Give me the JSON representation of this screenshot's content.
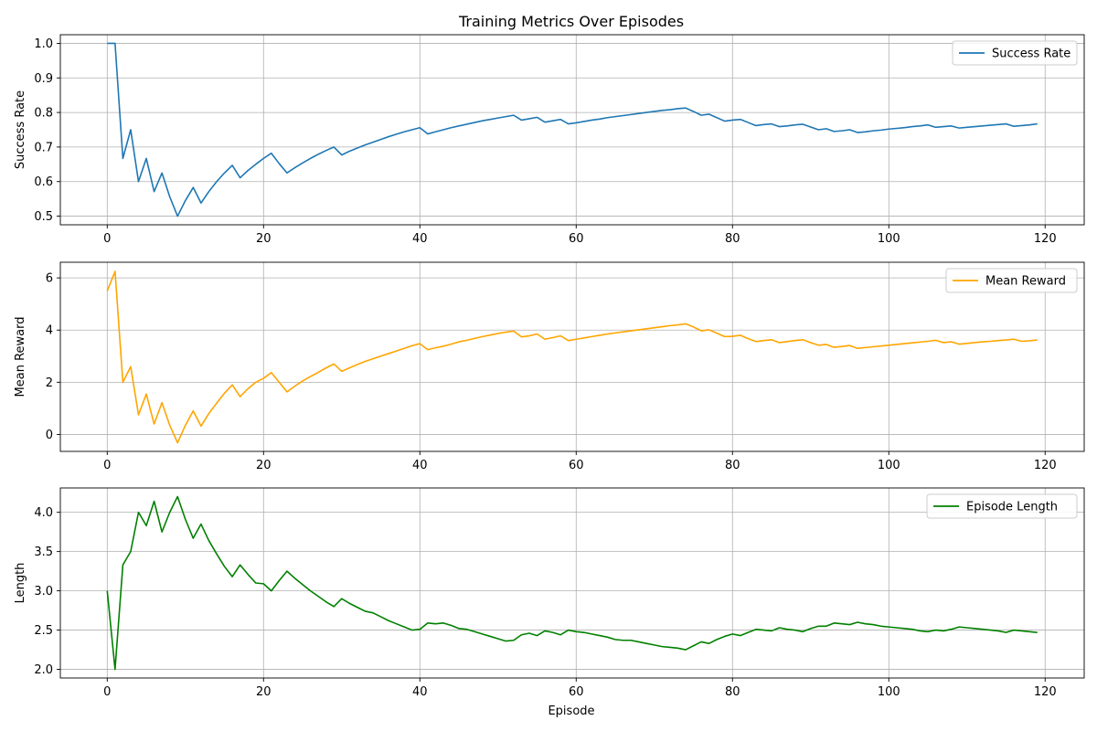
{
  "figure": {
    "title": "Training Metrics Over Episodes",
    "xlabel": "Episode"
  },
  "chart_data": [
    {
      "type": "line",
      "title": "Training Metrics Over Episodes",
      "xlabel": "",
      "ylabel": "Success Rate",
      "xlim": [
        -6,
        125
      ],
      "ylim": [
        0.475,
        1.025
      ],
      "xticks": [
        0,
        20,
        40,
        60,
        80,
        100,
        120
      ],
      "yticks": [
        0.5,
        0.6,
        0.7,
        0.8,
        0.9,
        1.0
      ],
      "ytick_labels": [
        "0.5",
        "0.6",
        "0.7",
        "0.8",
        "0.9",
        "1.0"
      ],
      "grid": true,
      "legend_position": "top-right",
      "series": [
        {
          "name": "Success Rate",
          "color": "#1f77b4",
          "x": [
            0,
            1,
            2,
            3,
            4,
            5,
            6,
            7,
            8,
            9,
            10,
            11,
            12,
            13,
            14,
            15,
            16,
            17,
            18,
            19,
            20,
            21,
            22,
            23,
            24,
            25,
            26,
            27,
            28,
            29,
            30,
            31,
            32,
            33,
            34,
            35,
            36,
            37,
            38,
            39,
            40,
            41,
            42,
            43,
            44,
            45,
            46,
            47,
            48,
            49,
            50,
            51,
            52,
            53,
            54,
            55,
            56,
            57,
            58,
            59,
            60,
            61,
            62,
            63,
            64,
            65,
            66,
            67,
            68,
            69,
            70,
            71,
            72,
            73,
            74,
            75,
            76,
            77,
            78,
            79,
            80,
            81,
            82,
            83,
            84,
            85,
            86,
            87,
            88,
            89,
            90,
            91,
            92,
            93,
            94,
            95,
            96,
            97,
            98,
            99,
            100,
            101,
            102,
            103,
            104,
            105,
            106,
            107,
            108,
            109,
            110,
            111,
            112,
            113,
            114,
            115,
            116,
            117,
            118,
            119
          ],
          "values": [
            1.0,
            1.0,
            0.667,
            0.75,
            0.6,
            0.667,
            0.571,
            0.625,
            0.556,
            0.5,
            0.545,
            0.583,
            0.538,
            0.571,
            0.6,
            0.625,
            0.647,
            0.611,
            0.632,
            0.65,
            0.667,
            0.682,
            0.652,
            0.625,
            0.64,
            0.654,
            0.667,
            0.679,
            0.69,
            0.7,
            0.677,
            0.688,
            0.697,
            0.706,
            0.714,
            0.722,
            0.73,
            0.737,
            0.744,
            0.75,
            0.756,
            0.738,
            0.744,
            0.75,
            0.756,
            0.761,
            0.766,
            0.771,
            0.776,
            0.78,
            0.784,
            0.788,
            0.792,
            0.778,
            0.782,
            0.786,
            0.772,
            0.776,
            0.78,
            0.767,
            0.77,
            0.774,
            0.778,
            0.781,
            0.785,
            0.788,
            0.791,
            0.794,
            0.797,
            0.8,
            0.803,
            0.806,
            0.808,
            0.811,
            0.813,
            0.803,
            0.792,
            0.795,
            0.785,
            0.775,
            0.778,
            0.78,
            0.771,
            0.762,
            0.765,
            0.767,
            0.759,
            0.761,
            0.764,
            0.766,
            0.758,
            0.75,
            0.753,
            0.745,
            0.747,
            0.75,
            0.742,
            0.744,
            0.747,
            0.749,
            0.752,
            0.754,
            0.756,
            0.759,
            0.761,
            0.764,
            0.757,
            0.759,
            0.761,
            0.755,
            0.757,
            0.759,
            0.761,
            0.763,
            0.765,
            0.767,
            0.76,
            0.762,
            0.764,
            0.767
          ]
        }
      ]
    },
    {
      "type": "line",
      "xlabel": "",
      "ylabel": "Mean Reward",
      "xlim": [
        -6,
        125
      ],
      "ylim": [
        -0.65,
        6.6
      ],
      "xticks": [
        0,
        20,
        40,
        60,
        80,
        100,
        120
      ],
      "yticks": [
        0,
        2,
        4,
        6
      ],
      "ytick_labels": [
        "0",
        "2",
        "4",
        "6"
      ],
      "grid": true,
      "legend_position": "top-right",
      "series": [
        {
          "name": "Mean Reward",
          "color": "#ffa500",
          "x": [
            0,
            1,
            2,
            3,
            4,
            5,
            6,
            7,
            8,
            9,
            10,
            11,
            12,
            13,
            14,
            15,
            16,
            17,
            18,
            19,
            20,
            21,
            22,
            23,
            24,
            25,
            26,
            27,
            28,
            29,
            30,
            31,
            32,
            33,
            34,
            35,
            36,
            37,
            38,
            39,
            40,
            41,
            42,
            43,
            44,
            45,
            46,
            47,
            48,
            49,
            50,
            51,
            52,
            53,
            54,
            55,
            56,
            57,
            58,
            59,
            60,
            61,
            62,
            63,
            64,
            65,
            66,
            67,
            68,
            69,
            70,
            71,
            72,
            73,
            74,
            75,
            76,
            77,
            78,
            79,
            80,
            81,
            82,
            83,
            84,
            85,
            86,
            87,
            88,
            89,
            90,
            91,
            92,
            93,
            94,
            95,
            96,
            97,
            98,
            99,
            100,
            101,
            102,
            103,
            104,
            105,
            106,
            107,
            108,
            109,
            110,
            111,
            112,
            113,
            114,
            115,
            116,
            117,
            118,
            119
          ],
          "values": [
            5.5,
            6.25,
            2.0,
            2.6,
            0.75,
            1.55,
            0.4,
            1.22,
            0.35,
            -0.32,
            0.35,
            0.9,
            0.32,
            0.8,
            1.2,
            1.58,
            1.9,
            1.45,
            1.75,
            2.0,
            2.15,
            2.37,
            2.0,
            1.63,
            1.85,
            2.05,
            2.22,
            2.38,
            2.55,
            2.7,
            2.42,
            2.55,
            2.68,
            2.8,
            2.9,
            3.0,
            3.1,
            3.2,
            3.3,
            3.4,
            3.48,
            3.25,
            3.32,
            3.38,
            3.46,
            3.55,
            3.61,
            3.68,
            3.75,
            3.81,
            3.87,
            3.92,
            3.96,
            3.74,
            3.78,
            3.85,
            3.65,
            3.71,
            3.78,
            3.6,
            3.65,
            3.7,
            3.75,
            3.8,
            3.85,
            3.89,
            3.93,
            3.97,
            4.01,
            4.05,
            4.09,
            4.13,
            4.17,
            4.2,
            4.24,
            4.12,
            3.97,
            4.01,
            3.88,
            3.75,
            3.76,
            3.8,
            3.67,
            3.56,
            3.6,
            3.63,
            3.52,
            3.56,
            3.6,
            3.63,
            3.52,
            3.42,
            3.45,
            3.34,
            3.37,
            3.41,
            3.3,
            3.33,
            3.36,
            3.39,
            3.42,
            3.45,
            3.48,
            3.51,
            3.54,
            3.57,
            3.61,
            3.52,
            3.55,
            3.46,
            3.49,
            3.52,
            3.55,
            3.57,
            3.6,
            3.62,
            3.65,
            3.57,
            3.59,
            3.62
          ]
        }
      ]
    },
    {
      "type": "line",
      "xlabel": "Episode",
      "ylabel": "Length",
      "xlim": [
        -6,
        125
      ],
      "ylim": [
        1.89,
        4.31
      ],
      "xticks": [
        0,
        20,
        40,
        60,
        80,
        100,
        120
      ],
      "yticks": [
        2.0,
        2.5,
        3.0,
        3.5,
        4.0
      ],
      "ytick_labels": [
        "2.0",
        "2.5",
        "3.0",
        "3.5",
        "4.0"
      ],
      "grid": true,
      "legend_position": "top-right",
      "series": [
        {
          "name": "Episode Length",
          "color": "#008000",
          "x": [
            0,
            1,
            2,
            3,
            4,
            5,
            6,
            7,
            8,
            9,
            10,
            11,
            12,
            13,
            14,
            15,
            16,
            17,
            18,
            19,
            20,
            21,
            22,
            23,
            24,
            25,
            26,
            27,
            28,
            29,
            30,
            31,
            32,
            33,
            34,
            35,
            36,
            37,
            38,
            39,
            40,
            41,
            42,
            43,
            44,
            45,
            46,
            47,
            48,
            49,
            50,
            51,
            52,
            53,
            54,
            55,
            56,
            57,
            58,
            59,
            60,
            61,
            62,
            63,
            64,
            65,
            66,
            67,
            68,
            69,
            70,
            71,
            72,
            73,
            74,
            75,
            76,
            77,
            78,
            79,
            80,
            81,
            82,
            83,
            84,
            85,
            86,
            87,
            88,
            89,
            90,
            91,
            92,
            93,
            94,
            95,
            96,
            97,
            98,
            99,
            100,
            101,
            102,
            103,
            104,
            105,
            106,
            107,
            108,
            109,
            110,
            111,
            112,
            113,
            114,
            115,
            116,
            117,
            118,
            119
          ],
          "values": [
            3.0,
            2.0,
            3.33,
            3.5,
            4.0,
            3.83,
            4.14,
            3.75,
            4.0,
            4.2,
            3.91,
            3.67,
            3.85,
            3.64,
            3.47,
            3.31,
            3.18,
            3.33,
            3.21,
            3.1,
            3.09,
            3.0,
            3.13,
            3.25,
            3.16,
            3.08,
            3.0,
            2.93,
            2.86,
            2.8,
            2.9,
            2.84,
            2.79,
            2.74,
            2.72,
            2.67,
            2.62,
            2.58,
            2.54,
            2.5,
            2.51,
            2.59,
            2.58,
            2.59,
            2.56,
            2.52,
            2.51,
            2.48,
            2.45,
            2.42,
            2.39,
            2.36,
            2.37,
            2.44,
            2.46,
            2.43,
            2.49,
            2.47,
            2.44,
            2.5,
            2.48,
            2.47,
            2.45,
            2.43,
            2.41,
            2.38,
            2.37,
            2.37,
            2.35,
            2.33,
            2.31,
            2.29,
            2.28,
            2.27,
            2.25,
            2.3,
            2.35,
            2.33,
            2.38,
            2.42,
            2.45,
            2.43,
            2.47,
            2.51,
            2.5,
            2.49,
            2.53,
            2.51,
            2.5,
            2.48,
            2.52,
            2.55,
            2.55,
            2.59,
            2.58,
            2.57,
            2.6,
            2.58,
            2.57,
            2.55,
            2.54,
            2.53,
            2.52,
            2.51,
            2.49,
            2.48,
            2.5,
            2.49,
            2.51,
            2.54,
            2.53,
            2.52,
            2.51,
            2.5,
            2.49,
            2.47,
            2.5,
            2.49,
            2.48,
            2.47
          ]
        }
      ]
    }
  ]
}
